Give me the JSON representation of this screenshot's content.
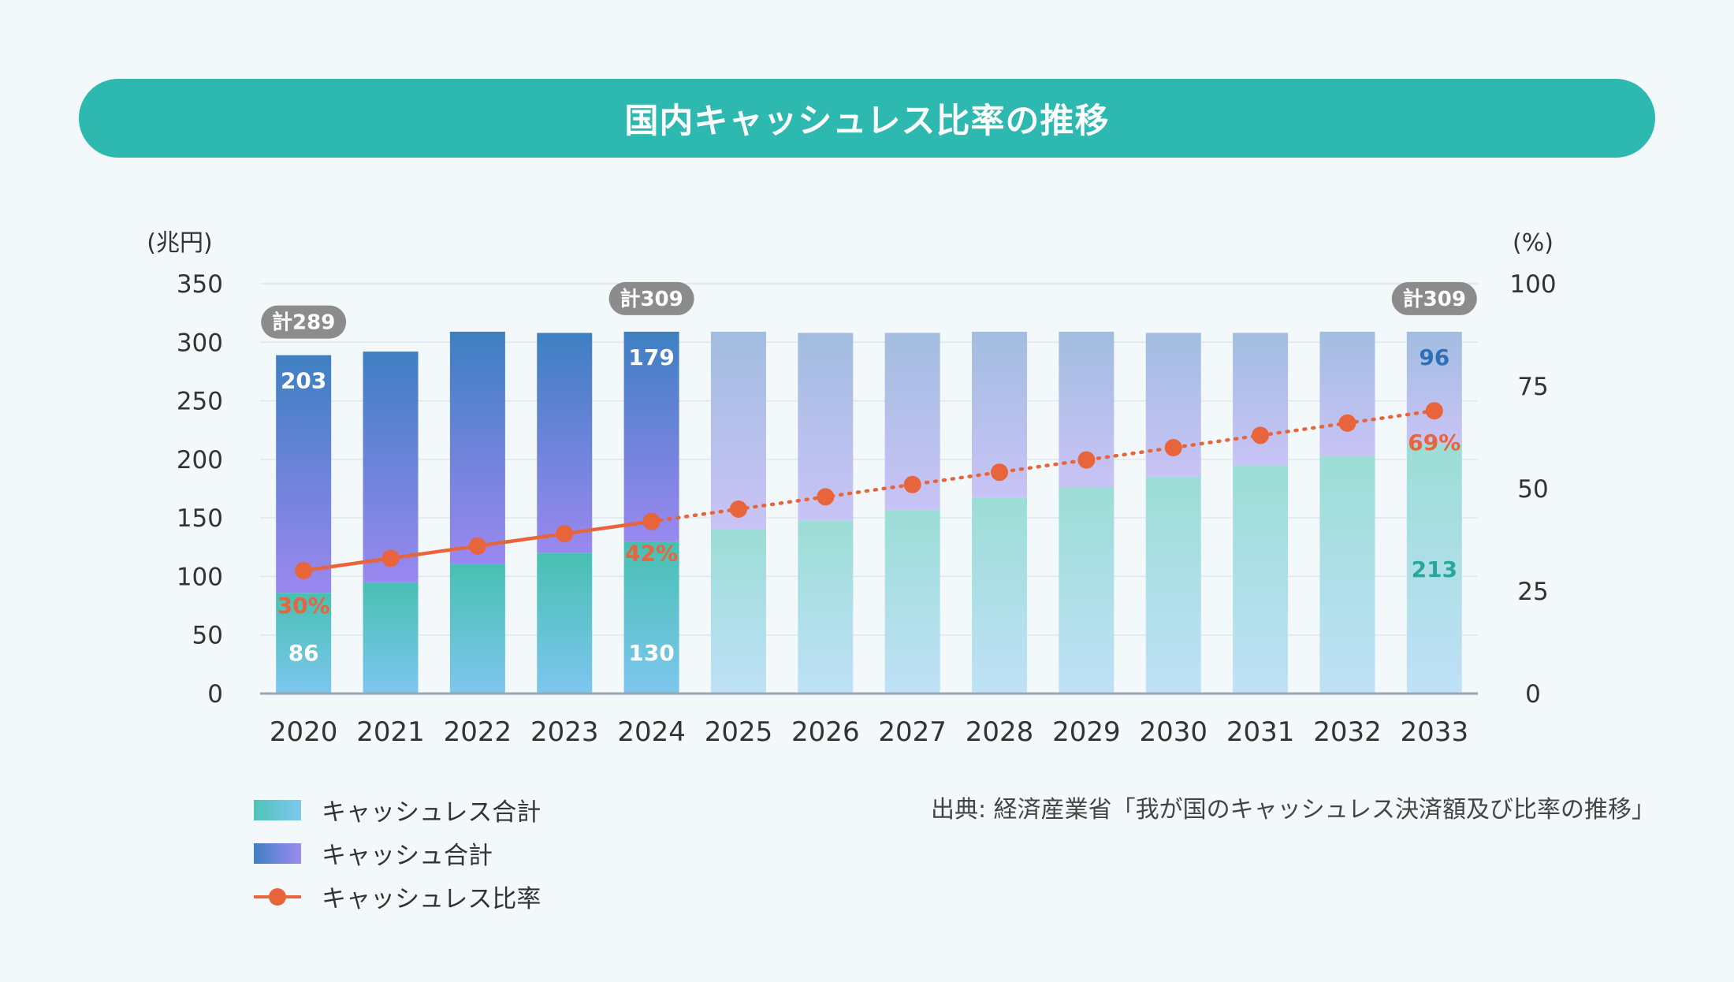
{
  "title": "国内キャッシュレス比率の推移",
  "source": "出典: 経済産業省「我が国のキャッシュレス決済額及び比率の推移」",
  "legend": {
    "cashless": "キャッシュレス合計",
    "cash": "キャッシュ合計",
    "ratio": "キャッシュレス比率"
  },
  "colors": {
    "title_bar": "#2db8b0",
    "ratio_line": "#e8643a",
    "cashless_actual": "#4fc3b7",
    "cash_actual": "#3f7fc3",
    "label_cash_projection": "#2f6fb8",
    "label_cashless_projection": "#2aa79d",
    "total_badge": "#8c8c8c"
  },
  "chart_data": {
    "type": "bar",
    "stacked": true,
    "categories": [
      "2020",
      "2021",
      "2022",
      "2023",
      "2024",
      "2025",
      "2026",
      "2027",
      "2028",
      "2029",
      "2030",
      "2031",
      "2032",
      "2033"
    ],
    "actual_years": [
      "2020",
      "2021",
      "2022",
      "2023",
      "2024"
    ],
    "projected_years": [
      "2025",
      "2026",
      "2027",
      "2028",
      "2029",
      "2030",
      "2031",
      "2032",
      "2033"
    ],
    "series": [
      {
        "name": "キャッシュレス合計",
        "axis": "left",
        "values": [
          86,
          95,
          111,
          120,
          130,
          140,
          148,
          157,
          167,
          176,
          185,
          195,
          203,
          213
        ]
      },
      {
        "name": "キャッシュ合計",
        "axis": "left",
        "values": [
          203,
          197,
          198,
          188,
          179,
          169,
          160,
          151,
          142,
          133,
          123,
          113,
          106,
          96
        ]
      },
      {
        "name": "キャッシュレス比率",
        "type": "line",
        "axis": "right",
        "values": [
          30,
          33,
          36,
          39,
          42,
          45,
          48,
          51,
          54,
          57,
          60,
          63,
          66,
          69
        ]
      }
    ],
    "data_labels": [
      {
        "category": "2020",
        "series": "キャッシュ合計",
        "text": "203"
      },
      {
        "category": "2020",
        "series": "キャッシュレス合計",
        "text": "86"
      },
      {
        "category": "2020",
        "series": "キャッシュレス比率",
        "text": "30%"
      },
      {
        "category": "2024",
        "series": "キャッシュ合計",
        "text": "179"
      },
      {
        "category": "2024",
        "series": "キャッシュレス合計",
        "text": "130"
      },
      {
        "category": "2024",
        "series": "キャッシュレス比率",
        "text": "42%"
      },
      {
        "category": "2033",
        "series": "キャッシュ合計",
        "text": "96"
      },
      {
        "category": "2033",
        "series": "キャッシュレス合計",
        "text": "213"
      },
      {
        "category": "2033",
        "series": "キャッシュレス比率",
        "text": "69%"
      }
    ],
    "totals": [
      {
        "category": "2020",
        "text": "計289"
      },
      {
        "category": "2024",
        "text": "計309"
      },
      {
        "category": "2033",
        "text": "計309"
      }
    ],
    "y_left": {
      "unit": "(兆円)",
      "ticks": [
        "0",
        "50",
        "100",
        "150",
        "200",
        "250",
        "300",
        "350"
      ],
      "range": [
        0,
        350
      ]
    },
    "y_right": {
      "unit": "(%)",
      "ticks": [
        "0",
        "25",
        "50",
        "75",
        "100"
      ],
      "range": [
        0,
        100
      ]
    },
    "grid": true,
    "legend_position": "bottom-left"
  }
}
